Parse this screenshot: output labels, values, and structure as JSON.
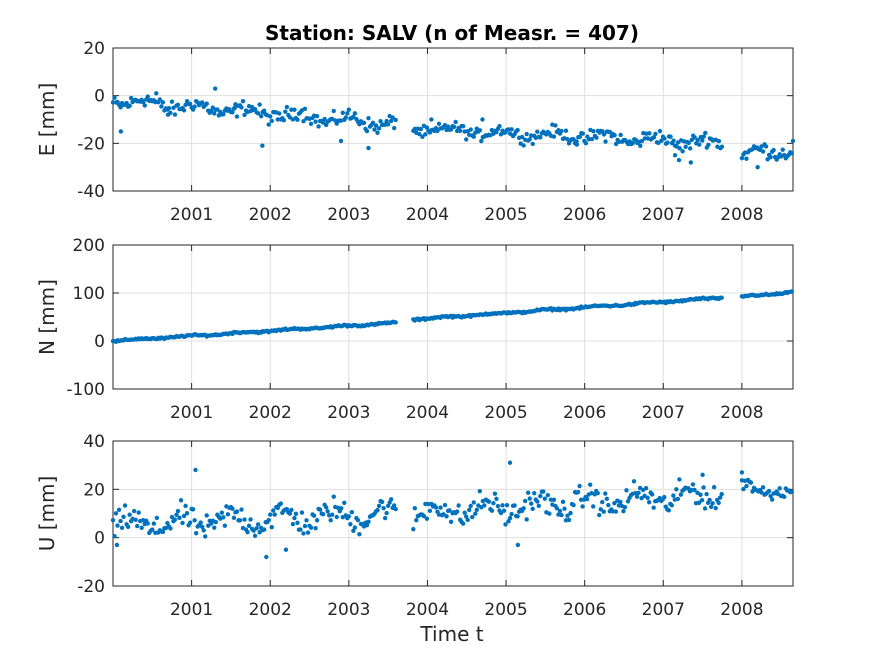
{
  "figure": {
    "title": "Station: SALV (n of Measr. = 407)",
    "xlabel": "Time t"
  },
  "colors": {
    "marker": "#0072BD",
    "axis": "#262626",
    "grid": "#dfdfdf"
  },
  "chart_data": [
    {
      "type": "scatter",
      "panel": "E",
      "ylabel": "E [mm]",
      "xlim": [
        2000.0,
        2008.65
      ],
      "ylim": [
        -40,
        20
      ],
      "yticks": [
        -40,
        -20,
        0,
        20
      ],
      "xticks": [
        2001,
        2002,
        2003,
        2004,
        2005,
        2006,
        2007,
        2008
      ],
      "grid": true,
      "segments": [
        {
          "x": [
            2000.0,
            2003.6
          ],
          "y": [
            -2,
            -12
          ],
          "spread": 3,
          "outliers": [
            [
              2000.1,
              -15
            ],
            [
              2000.55,
              1
            ],
            [
              2000.7,
              -8
            ],
            [
              2001.3,
              3
            ],
            [
              2001.55,
              -5
            ],
            [
              2001.9,
              -21
            ],
            [
              2002.9,
              -19
            ],
            [
              2003.25,
              -22
            ]
          ]
        },
        {
          "x": [
            2003.82,
            2005.9
          ],
          "y": [
            -14,
            -17
          ],
          "spread": 2.5,
          "outliers": [
            [
              2004.05,
              -10
            ],
            [
              2004.7,
              -10
            ]
          ]
        },
        {
          "x": [
            2005.9,
            2007.75
          ],
          "y": [
            -17,
            -20
          ],
          "spread": 3,
          "outliers": [
            [
              2007.15,
              -25
            ],
            [
              2007.2,
              -27
            ],
            [
              2007.35,
              -28
            ]
          ]
        },
        {
          "x": [
            2008.0,
            2008.65
          ],
          "y": [
            -25,
            -22
          ],
          "spread": 3,
          "outliers": [
            [
              2008.2,
              -30
            ],
            [
              2008.65,
              -19
            ]
          ]
        }
      ]
    },
    {
      "type": "scatter",
      "panel": "N",
      "ylabel": "N [mm]",
      "xlim": [
        2000.0,
        2008.65
      ],
      "ylim": [
        -100,
        200
      ],
      "yticks": [
        -100,
        0,
        100,
        200
      ],
      "xticks": [
        2001,
        2002,
        2003,
        2004,
        2005,
        2006,
        2007,
        2008
      ],
      "grid": true,
      "segments": [
        {
          "x": [
            2000.0,
            2003.6
          ],
          "y": [
            0,
            38
          ],
          "spread": 2,
          "outliers": []
        },
        {
          "x": [
            2003.82,
            2007.75
          ],
          "y": [
            45,
            90
          ],
          "spread": 2,
          "outliers": []
        },
        {
          "x": [
            2008.0,
            2008.65
          ],
          "y": [
            92,
            102
          ],
          "spread": 2,
          "outliers": []
        }
      ]
    },
    {
      "type": "scatter",
      "panel": "U",
      "ylabel": "U [mm]",
      "xlim": [
        2000.0,
        2008.65
      ],
      "ylim": [
        -20,
        40
      ],
      "yticks": [
        -20,
        0,
        20,
        40
      ],
      "xticks": [
        2001,
        2002,
        2003,
        2004,
        2005,
        2006,
        2007,
        2008
      ],
      "grid": true,
      "segments": [
        {
          "x": [
            2000.0,
            2003.6
          ],
          "y": [
            5,
            10
          ],
          "spread": 5,
          "outliers": [
            [
              2001.05,
              28
            ],
            [
              2001.95,
              -8
            ],
            [
              2002.2,
              -5
            ],
            [
              2000.05,
              -3
            ]
          ]
        },
        {
          "x": [
            2003.82,
            2007.75
          ],
          "y": [
            10,
            18
          ],
          "spread": 5,
          "outliers": [
            [
              2005.05,
              31
            ],
            [
              2005.15,
              -3
            ],
            [
              2007.5,
              26
            ]
          ]
        },
        {
          "x": [
            2008.0,
            2008.65
          ],
          "y": [
            22,
            18
          ],
          "spread": 3,
          "outliers": [
            [
              2008.0,
              27
            ]
          ]
        }
      ]
    }
  ]
}
